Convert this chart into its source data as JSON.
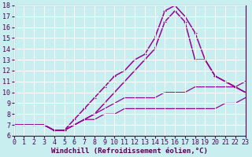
{
  "xlabel": "Windchill (Refroidissement éolien,°C)",
  "bg_color": "#c8eef0",
  "grid_color": "#ffffff",
  "line_color": "#990099",
  "xlim": [
    0,
    23
  ],
  "ylim": [
    6,
    18
  ],
  "xticks": [
    0,
    1,
    2,
    3,
    4,
    5,
    6,
    7,
    8,
    9,
    10,
    11,
    12,
    13,
    14,
    15,
    16,
    17,
    18,
    19,
    20,
    21,
    22,
    23
  ],
  "yticks": [
    6,
    7,
    8,
    9,
    10,
    11,
    12,
    13,
    14,
    15,
    16,
    17,
    18
  ],
  "series": [
    {
      "x": [
        0,
        1,
        2,
        3,
        4,
        5,
        6,
        7,
        8,
        9,
        10,
        11,
        12,
        13,
        14,
        15,
        16,
        17,
        18,
        19,
        20,
        21,
        22,
        23
      ],
      "y": [
        7,
        7,
        7,
        7,
        6.5,
        6.5,
        7,
        7.5,
        7.5,
        8,
        8,
        8.5,
        8.5,
        8.5,
        8.5,
        8.5,
        8.5,
        8.5,
        8.5,
        8.5,
        8.5,
        9,
        9,
        9.5
      ],
      "marker": null,
      "linewidth": 0.9,
      "has_markers": false
    },
    {
      "x": [
        0,
        1,
        2,
        3,
        4,
        5,
        6,
        7,
        8,
        9,
        10,
        11,
        12,
        13,
        14,
        15,
        16,
        17,
        18,
        19,
        20,
        21,
        22,
        23
      ],
      "y": [
        7,
        7,
        7,
        7,
        6.5,
        6.5,
        7,
        7.5,
        8,
        8.5,
        9,
        9.5,
        9.5,
        9.5,
        9.5,
        10,
        10,
        10,
        10.5,
        10.5,
        10.5,
        10.5,
        10.5,
        11
      ],
      "marker": null,
      "linewidth": 0.9,
      "has_markers": false
    },
    {
      "x": [
        0,
        1,
        2,
        3,
        4,
        5,
        6,
        7,
        8,
        9,
        10,
        11,
        12,
        13,
        14,
        15,
        16,
        17,
        18,
        19,
        20,
        21,
        22,
        23
      ],
      "y": [
        7,
        7,
        7,
        7,
        6.5,
        6.5,
        7.5,
        8.5,
        9.5,
        10.5,
        11.5,
        12,
        13,
        13.5,
        15,
        17.5,
        18,
        17,
        15.5,
        13,
        11.5,
        11,
        10.5,
        10
      ],
      "marker": "+",
      "linewidth": 1.1,
      "has_markers": true
    },
    {
      "x": [
        0,
        1,
        2,
        3,
        4,
        5,
        6,
        7,
        8,
        9,
        10,
        11,
        12,
        13,
        14,
        15,
        16,
        17,
        18,
        19,
        20,
        21,
        22,
        23
      ],
      "y": [
        7,
        7,
        7,
        7,
        6.5,
        6.5,
        7,
        7.5,
        8,
        9,
        10,
        11,
        12,
        13,
        14,
        16.5,
        17.5,
        16.5,
        13,
        13,
        11.5,
        11,
        10.5,
        10
      ],
      "marker": "+",
      "linewidth": 1.1,
      "has_markers": true
    }
  ],
  "font_size": 6,
  "xlabel_fontsize": 6.5
}
